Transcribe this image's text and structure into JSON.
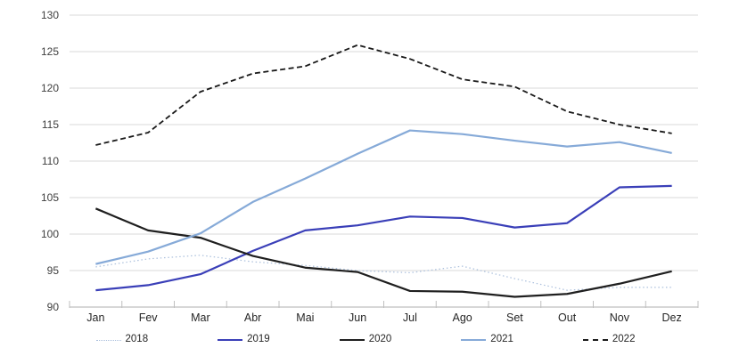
{
  "chart_data": {
    "type": "line",
    "title": "",
    "xlabel": "",
    "ylabel": "",
    "categories": [
      "Jan",
      "Fev",
      "Mar",
      "Abr",
      "Mai",
      "Jun",
      "Jul",
      "Ago",
      "Set",
      "Out",
      "Nov",
      "Dez"
    ],
    "ylim": [
      90,
      130
    ],
    "y_ticks": [
      90,
      95,
      100,
      105,
      110,
      115,
      120,
      125,
      130
    ],
    "grid": true,
    "legend_position": "bottom",
    "series": [
      {
        "name": "2018",
        "style": "dotted",
        "color": "#aabfdc",
        "width": 1.2,
        "values": [
          95.5,
          96.6,
          97.1,
          96.2,
          95.7,
          95.0,
          94.7,
          95.6,
          93.9,
          92.3,
          92.7,
          92.7
        ]
      },
      {
        "name": "2019",
        "style": "solid",
        "color": "#3a3fb8",
        "width": 2.2,
        "values": [
          92.3,
          93.0,
          94.5,
          97.7,
          100.5,
          101.2,
          102.4,
          102.2,
          100.9,
          101.5,
          106.4,
          106.6
        ]
      },
      {
        "name": "2020",
        "style": "solid",
        "color": "#1f1f1f",
        "width": 2.2,
        "values": [
          103.5,
          100.5,
          99.5,
          97.0,
          95.4,
          94.8,
          92.2,
          92.1,
          91.4,
          91.8,
          93.2,
          94.9
        ]
      },
      {
        "name": "2021",
        "style": "solid",
        "color": "#86aad8",
        "width": 2.2,
        "values": [
          95.9,
          97.6,
          100.1,
          104.4,
          107.6,
          111.0,
          114.2,
          113.7,
          112.8,
          112.0,
          112.6,
          111.1
        ]
      },
      {
        "name": "2022",
        "style": "dashed",
        "color": "#1a1a1a",
        "width": 1.8,
        "values": [
          112.2,
          113.9,
          119.5,
          122.0,
          123.0,
          125.9,
          124.0,
          121.2,
          120.2,
          116.8,
          115.0,
          113.8
        ]
      }
    ]
  },
  "colors": {
    "gridline": "#d9d9d9",
    "axis_line": "#bfbfbf",
    "y_tick_label": "#404040",
    "x_tick_label": "#262626"
  }
}
